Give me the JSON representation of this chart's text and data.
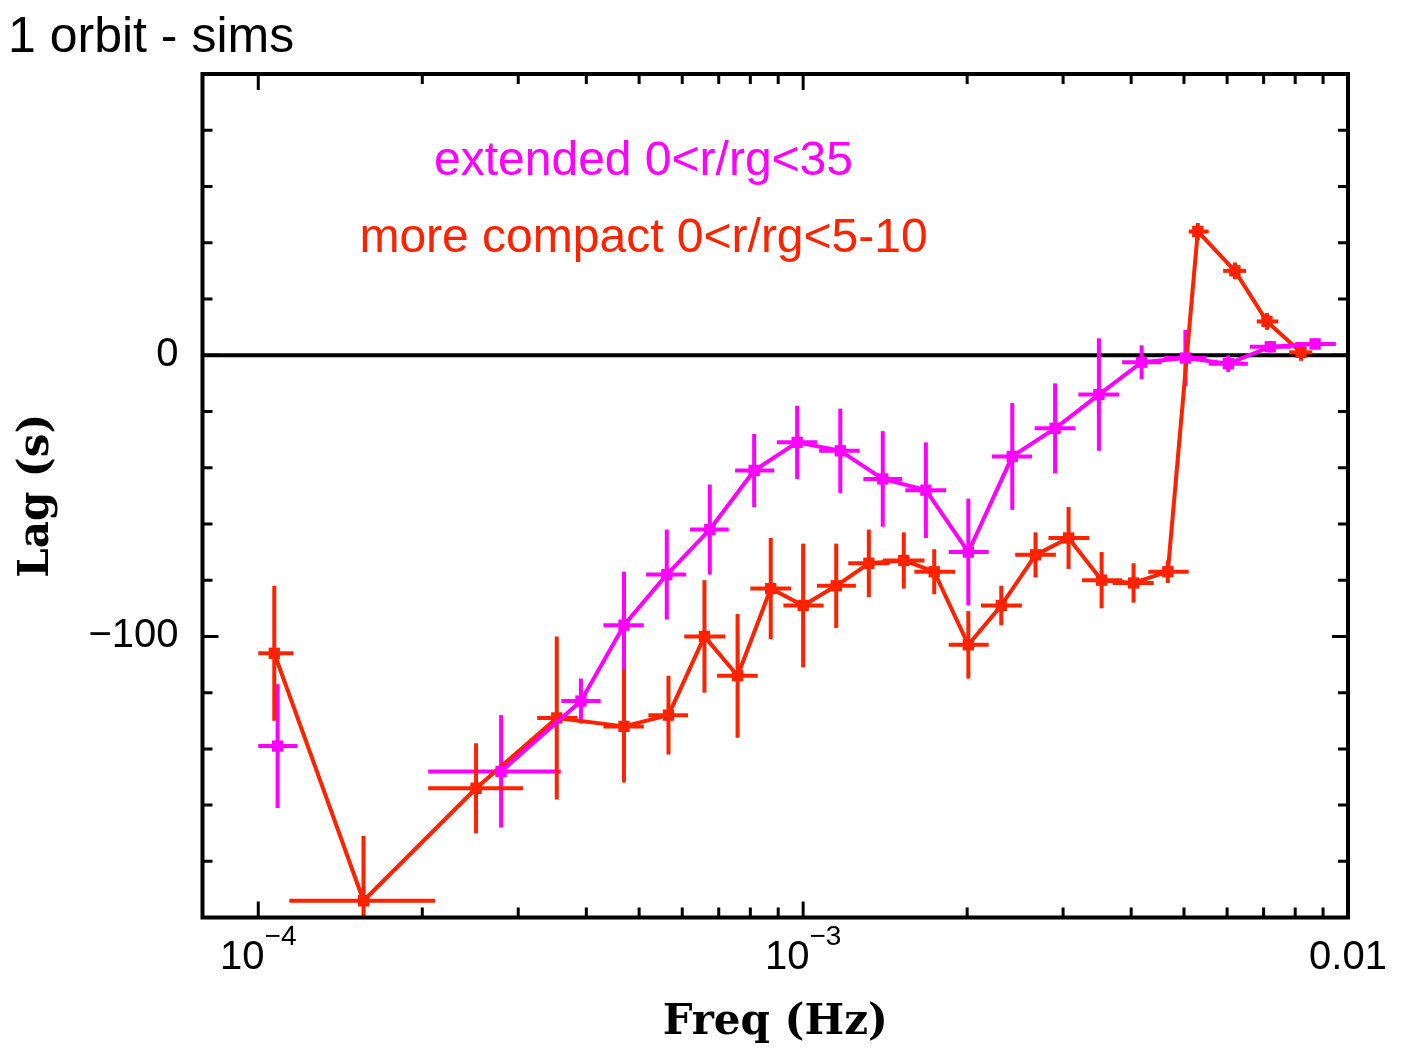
{
  "chart_data": {
    "type": "line",
    "title": "1 orbit - sims",
    "xlabel": "Freq (Hz)",
    "ylabel": "Lag (s)",
    "log": "x",
    "xlim": [
      7.9e-05,
      0.01
    ],
    "ylim": [
      -200,
      100
    ],
    "xticks": [
      {
        "value": 0.0001,
        "label": "10$^{−4}$"
      },
      {
        "value": 0.0002,
        "label": null
      },
      {
        "value": 0.0003,
        "label": null
      },
      {
        "value": 0.0004,
        "label": null
      },
      {
        "value": 0.0005,
        "label": null
      },
      {
        "value": 0.0006,
        "label": null
      },
      {
        "value": 0.0007,
        "label": null
      },
      {
        "value": 0.0008,
        "label": null
      },
      {
        "value": 0.0009,
        "label": null
      },
      {
        "value": 0.001,
        "label": "10$^{−3}$"
      },
      {
        "value": 0.002,
        "label": null
      },
      {
        "value": 0.003,
        "label": null
      },
      {
        "value": 0.004,
        "label": null
      },
      {
        "value": 0.005,
        "label": null
      },
      {
        "value": 0.006,
        "label": null
      },
      {
        "value": 0.007,
        "label": null
      },
      {
        "value": 0.008,
        "label": null
      },
      {
        "value": 0.009,
        "label": null
      },
      {
        "value": 0.01,
        "label": "0.01"
      }
    ],
    "yticks": [
      {
        "value": -200,
        "label": null
      },
      {
        "value": -180,
        "label": null
      },
      {
        "value": -160,
        "label": null
      },
      {
        "value": -140,
        "label": null
      },
      {
        "value": -120,
        "label": null
      },
      {
        "value": -100,
        "label": "−100"
      },
      {
        "value": -80,
        "label": null
      },
      {
        "value": -60,
        "label": null
      },
      {
        "value": -40,
        "label": null
      },
      {
        "value": -20,
        "label": null
      },
      0,
      {
        "value": 20,
        "label": null
      },
      {
        "value": 40,
        "label": null
      },
      {
        "value": 60,
        "label": null
      },
      {
        "value": 80,
        "label": null
      },
      {
        "value": 100,
        "label": null
      }
    ],
    "legend": "top left",
    "marker": "square",
    "ref_lines": [
      {
        "axis": "y",
        "value": 0,
        "color": "#000000"
      }
    ],
    "series": [
      {
        "name": "extended 0<r/rg<35",
        "color": "#ff00ff",
        "x": [
          0.0001085,
          0.000156,
          0.000279,
          0.000391,
          0.000469,
          0.000562,
          0.000674,
          0.000813,
          0.000975,
          0.00117,
          0.0014,
          0.00168,
          0.00201,
          0.00242,
          0.0029,
          0.00349,
          0.00418,
          0.00503,
          0.00603,
          0.0072,
          0.0087
        ],
        "values": [
          -139,
          null,
          -148,
          -123,
          -96,
          -78,
          -62,
          -41,
          -31,
          -34,
          -44,
          -48,
          -70,
          -36,
          -26,
          -14,
          -2.5,
          -1,
          -3,
          3,
          4
        ],
        "errors": [
          22,
          null,
          20,
          8,
          19,
          16,
          16,
          13,
          13,
          15,
          17,
          17,
          19,
          19,
          16,
          20,
          6,
          10,
          3,
          2,
          2
        ],
        "xerrors": [
          [
            0.0001,
            0.000118
          ],
          null,
          [
            0.000205,
            0.000359
          ],
          [
            0.00036,
            0.000425
          ],
          [
            0.00043,
            0.00051
          ],
          [
            0.000515,
            0.00061
          ],
          [
            0.00062,
            0.00073
          ],
          [
            0.00075,
            0.000885
          ],
          [
            0.000895,
            0.00106
          ],
          [
            0.00107,
            0.00127
          ],
          [
            0.00129,
            0.00152
          ],
          [
            0.00154,
            0.00183
          ],
          [
            0.00185,
            0.00219
          ],
          [
            0.00222,
            0.00263
          ],
          [
            0.00266,
            0.00316
          ],
          [
            0.0032,
            0.0038
          ],
          [
            0.00385,
            0.00455
          ],
          [
            0.0046,
            0.0055
          ],
          [
            0.00555,
            0.00655
          ],
          [
            0.0066,
            0.00785
          ],
          [
            0.008,
            0.0095
          ]
        ]
      },
      {
        "name": "more compact 0<r/rg<5-10",
        "color": "#ff2200",
        "x": [
          0.000107,
          0.000156,
          0.000251,
          0.000353,
          0.000469,
          0.000566,
          0.000659,
          0.000758,
          0.000872,
          0.001,
          0.00115,
          0.00132,
          0.00153,
          0.00174,
          0.00201,
          0.00231,
          0.00267,
          0.00307,
          0.00353,
          0.00404,
          0.00467,
          0.0053,
          0.0062,
          0.0071,
          0.0082
        ],
        "values": [
          -106,
          -194,
          -154,
          -129,
          -132,
          -128,
          -100,
          -114,
          -83,
          -89,
          -82,
          -74,
          -73,
          -77,
          -103,
          -89,
          -71,
          -65,
          -80,
          -81,
          -77,
          44,
          30,
          12,
          1
        ],
        "errors": [
          24,
          [
            -200,
            -171
          ],
          16,
          29,
          20,
          14,
          20,
          22,
          18,
          22,
          15,
          12,
          10,
          8,
          12,
          7,
          8,
          11,
          10,
          7,
          4,
          3,
          3,
          3,
          3
        ],
        "xerrors": [
          [
            0.0001,
            0.000116
          ],
          [
            0.000114,
            0.000211
          ],
          [
            0.000205,
            0.000306
          ],
          [
            0.000325,
            0.000385
          ],
          [
            0.00043,
            0.00051
          ],
          [
            0.00052,
            0.000615
          ],
          [
            0.000605,
            0.00072
          ],
          [
            0.000695,
            0.000825
          ],
          [
            0.0008,
            0.00095
          ],
          [
            0.00092,
            0.00109
          ],
          [
            0.00106,
            0.00125
          ],
          [
            0.00121,
            0.00144
          ],
          [
            0.0014,
            0.00167
          ],
          [
            0.0016,
            0.0019
          ],
          [
            0.00185,
            0.00219
          ],
          [
            0.00212,
            0.00252
          ],
          [
            0.00245,
            0.00291
          ],
          [
            0.00282,
            0.00335
          ],
          [
            0.00325,
            0.00385
          ],
          [
            0.0037,
            0.0044
          ],
          [
            0.0043,
            0.0051
          ],
          [
            0.0051,
            0.00555
          ],
          [
            0.0059,
            0.0065
          ],
          [
            0.0068,
            0.00745
          ],
          [
            0.0078,
            0.0086
          ]
        ]
      }
    ]
  }
}
